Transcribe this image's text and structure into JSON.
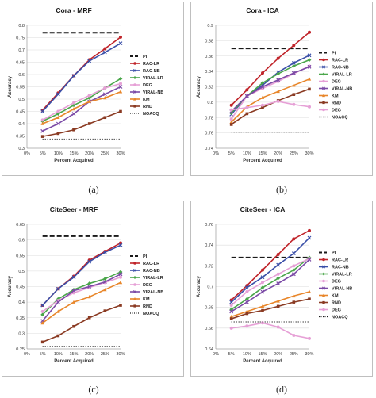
{
  "series_styles": {
    "PI": {
      "color": "#1a1a1a",
      "marker": "none",
      "dash": "long"
    },
    "RAC-LR": {
      "color": "#c0242a",
      "marker": "circle"
    },
    "RAC-NB": {
      "color": "#3a4fa8",
      "marker": "cross"
    },
    "VIRAL-LR": {
      "color": "#4aa64a",
      "marker": "diamond"
    },
    "DEG": {
      "color": "#e6a0d6",
      "marker": "circle"
    },
    "VIRAL-NB": {
      "color": "#7b4aa6",
      "marker": "cross"
    },
    "KM": {
      "color": "#e8862a",
      "marker": "triangle"
    },
    "RND": {
      "color": "#8a3a22",
      "marker": "square"
    },
    "NOACQ": {
      "color": "#1a1a1a",
      "marker": "none",
      "dash": "dot"
    }
  },
  "chart_data": [
    {
      "type": "line",
      "panel_label": "(a)",
      "title": "Cora - MRF",
      "xlabel": "Percent Acquired",
      "ylabel": "Accuracy",
      "categories": [
        "0%",
        "5%",
        "10%",
        "15%",
        "20%",
        "25%",
        "30%"
      ],
      "x": [
        "5%",
        "10%",
        "15%",
        "20%",
        "25%",
        "30%"
      ],
      "ylim": [
        0.3,
        0.8
      ],
      "yticks": [
        "0.3",
        "0.35",
        "0.4",
        "0.45",
        "0.5",
        "0.55",
        "0.6",
        "0.65",
        "0.7",
        "0.75",
        "0.8"
      ],
      "grid": true,
      "legend_position": "right",
      "series": [
        {
          "name": "PI",
          "values": [
            0.77,
            0.77,
            0.77,
            0.77,
            0.77,
            0.77
          ]
        },
        {
          "name": "RAC-LR",
          "values": [
            0.455,
            0.525,
            0.595,
            0.66,
            0.705,
            0.752
          ]
        },
        {
          "name": "RAC-NB",
          "values": [
            0.45,
            0.52,
            0.595,
            0.655,
            0.69,
            0.727
          ]
        },
        {
          "name": "VIRAL-LR",
          "values": [
            0.41,
            0.44,
            0.475,
            0.505,
            0.545,
            0.583
          ]
        },
        {
          "name": "DEG",
          "values": [
            0.415,
            0.45,
            0.485,
            0.515,
            0.545,
            0.563
          ]
        },
        {
          "name": "VIRAL-NB",
          "values": [
            0.37,
            0.4,
            0.44,
            0.49,
            0.52,
            0.55
          ]
        },
        {
          "name": "KM",
          "values": [
            0.4,
            0.425,
            0.46,
            0.49,
            0.505,
            0.53
          ]
        },
        {
          "name": "RND",
          "values": [
            0.348,
            0.36,
            0.375,
            0.4,
            0.425,
            0.45
          ]
        },
        {
          "name": "NOACQ",
          "values": [
            0.337,
            0.337,
            0.337,
            0.337,
            0.337,
            0.337
          ]
        }
      ]
    },
    {
      "type": "line",
      "panel_label": "(b)",
      "title": "Cora - ICA",
      "xlabel": "Percent Acquired",
      "ylabel": "Accuracy",
      "categories": [
        "0%",
        "5%",
        "10%",
        "15%",
        "20%",
        "25%",
        "30%"
      ],
      "x": [
        "5%",
        "10%",
        "15%",
        "20%",
        "25%",
        "30%"
      ],
      "ylim": [
        0.74,
        0.9
      ],
      "yticks": [
        "0.74",
        "0.76",
        "0.78",
        "0.8",
        "0.82",
        "0.84",
        "0.86",
        "0.88",
        "0.9"
      ],
      "grid": true,
      "legend_position": "right",
      "series": [
        {
          "name": "PI",
          "values": [
            0.87,
            0.87,
            0.87,
            0.87,
            0.87,
            0.87
          ]
        },
        {
          "name": "RAC-LR",
          "values": [
            0.796,
            0.816,
            0.838,
            0.857,
            0.874,
            0.891
          ]
        },
        {
          "name": "RAC-NB",
          "values": [
            0.784,
            0.808,
            0.822,
            0.839,
            0.851,
            0.861
          ]
        },
        {
          "name": "VIRAL-LR",
          "values": [
            0.786,
            0.808,
            0.825,
            0.837,
            0.847,
            0.855
          ]
        },
        {
          "name": "DEG",
          "values": [
            0.778,
            0.808,
            0.818,
            0.827,
            0.837,
            0.847
          ]
        },
        {
          "name": "VIRAL-NB",
          "values": [
            0.788,
            0.808,
            0.82,
            0.829,
            0.838,
            0.846
          ]
        },
        {
          "name": "KM",
          "values": [
            0.774,
            0.794,
            0.806,
            0.814,
            0.822,
            0.83
          ]
        },
        {
          "name": "RND",
          "values": [
            0.771,
            0.785,
            0.793,
            0.802,
            0.81,
            0.817
          ]
        },
        {
          "name": "DEG",
          "values": [
            0.79,
            0.793,
            0.796,
            0.801,
            0.797,
            0.794
          ]
        },
        {
          "name": "NOACQ",
          "values": [
            0.761,
            0.761,
            0.761,
            0.761,
            0.761,
            0.761
          ]
        }
      ]
    },
    {
      "type": "line",
      "panel_label": "(c)",
      "title": "CiteSeer - MRF",
      "xlabel": "Percent Acquired",
      "ylabel": "Accuracy",
      "categories": [
        "0%",
        "5%",
        "10%",
        "15%",
        "20%",
        "25%",
        "30%"
      ],
      "x": [
        "5%",
        "10%",
        "15%",
        "20%",
        "25%",
        "30%"
      ],
      "ylim": [
        0.25,
        0.65
      ],
      "yticks": [
        "0.25",
        "0.3",
        "0.35",
        "0.4",
        "0.45",
        "0.5",
        "0.55",
        "0.6",
        "0.65"
      ],
      "grid": true,
      "legend_position": "right",
      "series": [
        {
          "name": "PI",
          "values": [
            0.612,
            0.612,
            0.612,
            0.612,
            0.612,
            0.612
          ]
        },
        {
          "name": "RAC-LR",
          "values": [
            0.39,
            0.443,
            0.483,
            0.535,
            0.563,
            0.59
          ]
        },
        {
          "name": "RAC-NB",
          "values": [
            0.39,
            0.443,
            0.48,
            0.53,
            0.56,
            0.583
          ]
        },
        {
          "name": "VIRAL-LR",
          "values": [
            0.36,
            0.41,
            0.44,
            0.46,
            0.475,
            0.497
          ]
        },
        {
          "name": "DEG",
          "values": [
            0.37,
            0.405,
            0.43,
            0.447,
            0.463,
            0.48
          ]
        },
        {
          "name": "VIRAL-NB",
          "values": [
            0.34,
            0.4,
            0.437,
            0.45,
            0.465,
            0.49
          ]
        },
        {
          "name": "KM",
          "values": [
            0.333,
            0.37,
            0.4,
            0.417,
            0.44,
            0.463
          ]
        },
        {
          "name": "RND",
          "values": [
            0.272,
            0.292,
            0.322,
            0.35,
            0.372,
            0.39
          ]
        },
        {
          "name": "NOACQ",
          "values": [
            0.257,
            0.257,
            0.257,
            0.257,
            0.257,
            0.257
          ]
        }
      ]
    },
    {
      "type": "line",
      "panel_label": "(d)",
      "title": "CiteSeer - ICA",
      "xlabel": "Percent Acquired",
      "ylabel": "Accuracy",
      "categories": [
        "0%",
        "5%",
        "10%",
        "15%",
        "20%",
        "25%",
        "30%"
      ],
      "x": [
        "5%",
        "10%",
        "15%",
        "20%",
        "25%",
        "30%"
      ],
      "ylim": [
        0.64,
        0.76
      ],
      "yticks": [
        "0.64",
        "0.66",
        "0.68",
        "0.7",
        "0.72",
        "0.74",
        "0.76"
      ],
      "grid": true,
      "legend_position": "right",
      "series": [
        {
          "name": "PI",
          "values": [
            0.728,
            0.728,
            0.728,
            0.728,
            0.728,
            0.728
          ]
        },
        {
          "name": "RAC-LR",
          "values": [
            0.687,
            0.701,
            0.716,
            0.731,
            0.746,
            0.754
          ]
        },
        {
          "name": "RAC-NB",
          "values": [
            0.685,
            0.699,
            0.709,
            0.721,
            0.732,
            0.747
          ]
        },
        {
          "name": "VIRAL-LR",
          "values": [
            0.678,
            0.688,
            0.699,
            0.708,
            0.716,
            0.728
          ]
        },
        {
          "name": "DEG",
          "values": [
            0.682,
            0.695,
            0.704,
            0.712,
            0.72,
            0.727
          ]
        },
        {
          "name": "VIRAL-NB",
          "values": [
            0.676,
            0.685,
            0.695,
            0.703,
            0.712,
            0.726
          ]
        },
        {
          "name": "KM",
          "values": [
            0.671,
            0.676,
            0.681,
            0.686,
            0.691,
            0.695
          ]
        },
        {
          "name": "RND",
          "values": [
            0.669,
            0.674,
            0.677,
            0.681,
            0.685,
            0.688
          ]
        },
        {
          "name": "DEG",
          "values": [
            0.66,
            0.662,
            0.665,
            0.661,
            0.653,
            0.65
          ]
        },
        {
          "name": "NOACQ",
          "values": [
            0.666,
            0.666,
            0.666,
            0.666,
            0.666,
            0.666
          ]
        }
      ]
    }
  ]
}
